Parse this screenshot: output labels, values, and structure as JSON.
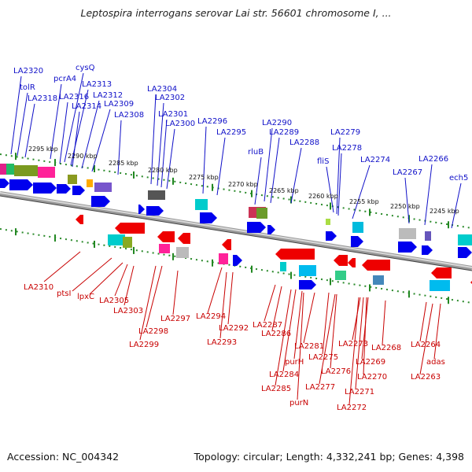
{
  "title": "Leptospira interrogans serovar Lai str. 56601 chromosome I, ...",
  "footer": {
    "accession": "Accession: NC_004342",
    "summary": "Topology: circular; Length: 4,332,241 bp; Genes: 4,398"
  },
  "colors": {
    "forward_gene": "#0000ee",
    "reverse_gene": "#ee0000",
    "forward_label": "#1010c8",
    "reverse_label": "#c80000",
    "tick": "#228822",
    "backbone": "#888888"
  },
  "scale_labels": [
    "2295 kbp",
    "2290 kbp",
    "2285 kbp",
    "2280 kbp",
    "2275 kbp",
    "2270 kbp",
    "2265 kbp",
    "2260 kbp",
    "2255 kbp",
    "2250 kbp",
    "2245 kbp"
  ],
  "top_labels": [
    "LA2320",
    "tolR",
    "LA2318",
    "pcrA4",
    "cysQ",
    "LA2316",
    "LA2313",
    "LA2314",
    "LA2312",
    "LA2309",
    "LA2308",
    "LA2304",
    "LA2302",
    "LA2301",
    "LA2300",
    "LA2296",
    "LA2295",
    "LA2290",
    "LA2289",
    "rluB",
    "LA2288",
    "fliS",
    "LA2279",
    "LA2278",
    "LA2274",
    "LA2267",
    "LA2266",
    "ech5"
  ],
  "bottom_labels": [
    "LA2310",
    "ptsI",
    "lpxC",
    "LA2305",
    "LA2303",
    "LA2298",
    "LA2299",
    "LA2297",
    "LA2294",
    "LA2292",
    "LA2293",
    "LA2287",
    "LA2286",
    "LA2284",
    "purH",
    "LA2285",
    "purN",
    "LA2281",
    "LA2275",
    "LA2276",
    "LA2277",
    "LA2273",
    "LA2269",
    "LA2270",
    "LA2271",
    "LA2272",
    "LA2268",
    "LA2264",
    "adas",
    "LA2263"
  ]
}
